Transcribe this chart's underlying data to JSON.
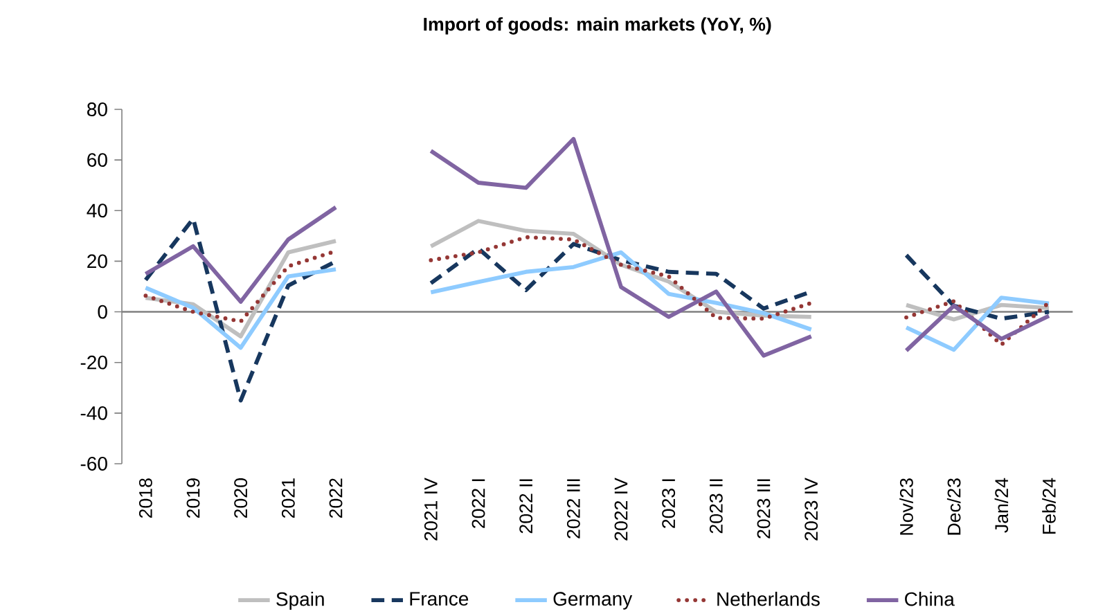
{
  "chart_data": {
    "type": "line",
    "title": "Import of goods: main markets (YoY, %)",
    "categories": [
      "2018",
      "2019",
      "2020",
      "2021",
      "2022",
      null,
      "2021 IV",
      "2022 I",
      "2022 II",
      "2022 III",
      "2022 IV",
      "2023 I",
      "2023 II",
      "2023 III",
      "2023 IV",
      null,
      "Nov/23",
      "Dec/23",
      "Jan/24",
      "Feb/24"
    ],
    "series": [
      {
        "name": "Spain",
        "color": "#bfbfbf",
        "line_style": "solid",
        "values": [
          5.5,
          3,
          -9.7,
          23.5,
          28,
          null,
          25.9,
          35.9,
          32,
          30.8,
          18.6,
          12,
          0,
          -1.5,
          -2,
          null,
          2.7,
          -3,
          2.7,
          1.5
        ]
      },
      {
        "name": "France",
        "color": "#17375e",
        "line_style": "dashed",
        "values": [
          12.6,
          36.8,
          -35,
          10.4,
          19.9,
          null,
          11.3,
          25,
          8.6,
          26.8,
          20.4,
          15.8,
          15,
          1.3,
          8,
          null,
          22.4,
          2.4,
          -2.7,
          0
        ]
      },
      {
        "name": "Germany",
        "color": "#8ecbff",
        "line_style": "solid",
        "values": [
          9.5,
          1.6,
          -14.2,
          14,
          16.8,
          null,
          7.7,
          11.8,
          15.8,
          17.7,
          23.5,
          7.1,
          3.5,
          -0.5,
          -7,
          null,
          -6.2,
          -15,
          5.6,
          3.3
        ]
      },
      {
        "name": "Netherlands",
        "color": "#953735",
        "line_style": "dotted",
        "values": [
          6.4,
          0,
          -3.8,
          18,
          24,
          null,
          20.4,
          23.5,
          29.5,
          28.6,
          18.6,
          14,
          -2.4,
          -2.7,
          3.5,
          null,
          -2.2,
          4.2,
          -13,
          3.7
        ]
      },
      {
        "name": "China",
        "color": "#8064a2",
        "line_style": "solid",
        "values": [
          15,
          25.9,
          4,
          28.6,
          41.3,
          null,
          63.6,
          51,
          49,
          68.3,
          9.8,
          -2,
          8,
          -17.3,
          -9.7,
          null,
          -15.3,
          2.4,
          -10.7,
          -1.6
        ]
      }
    ],
    "ylim": [
      -60,
      80
    ],
    "yticks": [
      -60,
      -40,
      -20,
      0,
      20,
      40,
      60,
      80
    ],
    "ref_lines": [
      {
        "axis": "y",
        "value": 0,
        "color": "#808080"
      }
    ],
    "grid": false,
    "legend": "bottom",
    "marker": "none"
  }
}
